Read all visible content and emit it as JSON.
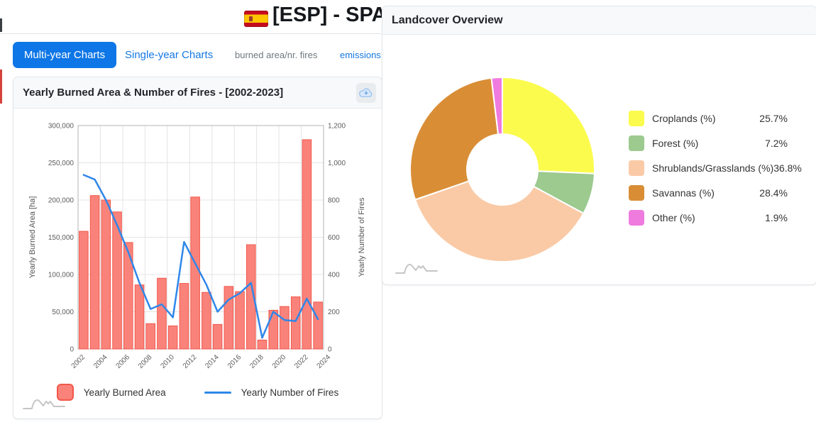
{
  "header": {
    "title": "[ESP] - SPAIN",
    "flag_icon": "spain-flag"
  },
  "tabs": [
    {
      "label": "Multi-year Charts",
      "active": true
    },
    {
      "label": "Single-year Charts",
      "active": false
    },
    {
      "label": "burned area/nr. fires",
      "active": false
    },
    {
      "label": "emissions",
      "active": false
    }
  ],
  "burned_area_panel": {
    "title": "Yearly Burned Area & Number of Fires - [2002-2023]",
    "download_icon": "cloud-download-icon"
  },
  "landcover_panel": {
    "title": "Landcover Overview"
  },
  "colors": {
    "active_tab": "#0e76e6",
    "link_blue": "#1678e3",
    "muted_tab": "#6f777e",
    "card_header_bg": "#f8f9fa",
    "bar_fill": "#f9837b",
    "bar_border": "#f2574b",
    "line_blue": "#2f87e9"
  },
  "chart_data": [
    {
      "type": "bar",
      "title": "Yearly Burned Area & Number of Fires - [2002-2023]",
      "categories": [
        2002,
        2003,
        2004,
        2005,
        2006,
        2007,
        2008,
        2009,
        2010,
        2011,
        2012,
        2013,
        2014,
        2015,
        2016,
        2017,
        2018,
        2019,
        2020,
        2021,
        2022,
        2023
      ],
      "series": [
        {
          "name": "Yearly Burned Area",
          "type": "bar",
          "axis": "left",
          "color": "#f9837b",
          "border_color": "#f2574b",
          "values": [
            158000,
            206000,
            200000,
            184000,
            143000,
            86000,
            34000,
            95000,
            31000,
            88000,
            204000,
            76000,
            33000,
            84000,
            77000,
            140000,
            12000,
            52000,
            57000,
            70000,
            281000,
            63000
          ]
        },
        {
          "name": "Yearly Number of Fires",
          "type": "line",
          "axis": "right",
          "color": "#2f87e9",
          "values": [
            935,
            910,
            800,
            665,
            520,
            355,
            215,
            240,
            170,
            575,
            460,
            345,
            200,
            265,
            300,
            355,
            60,
            200,
            155,
            150,
            270,
            160
          ]
        }
      ],
      "y_left": {
        "label": "Yearly Burned Area [ha]",
        "min": 0,
        "max": 300000,
        "ticks": [
          "300,000",
          "250,000",
          "200,000",
          "150,000",
          "100,000",
          "50,000",
          "0"
        ]
      },
      "y_right": {
        "label": "Yearly Number of Fires",
        "min": 0,
        "max": 1200,
        "ticks": [
          "1,200",
          "1,000",
          "800",
          "600",
          "400",
          "200",
          "0"
        ]
      },
      "x_ticks": [
        "2002",
        "2004",
        "2006",
        "2008",
        "2010",
        "2012",
        "2014",
        "2016",
        "2018",
        "2020",
        "2022",
        "2024"
      ],
      "grid": true,
      "legend_position": "bottom"
    },
    {
      "type": "pie",
      "subtype": "donut",
      "title": "Landcover Overview",
      "legend_position": "right",
      "slices": [
        {
          "label": "Croplands (%)",
          "value": 25.7,
          "display": "25.7%",
          "color": "#fbfb4e"
        },
        {
          "label": "Forest (%)",
          "value": 7.2,
          "display": "7.2%",
          "color": "#9cca8f"
        },
        {
          "label": "Shrublands/Grasslands (%)",
          "value": 36.8,
          "display": "36.8%",
          "color": "#facaa6"
        },
        {
          "label": "Savannas (%)",
          "value": 28.4,
          "display": "28.4%",
          "color": "#d98e36"
        },
        {
          "label": "Other (%)",
          "value": 1.9,
          "display": "1.9%",
          "color": "#ef7bde"
        }
      ]
    }
  ]
}
